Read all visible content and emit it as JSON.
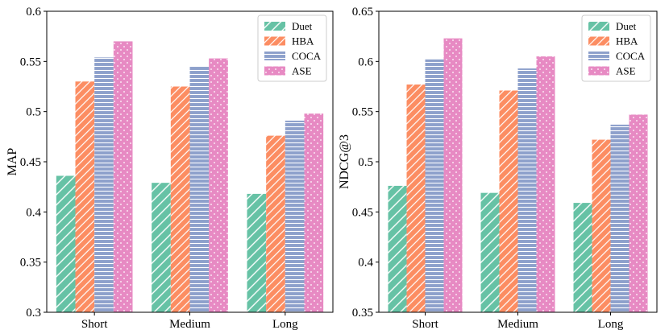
{
  "chart_data": [
    {
      "type": "bar",
      "title": "",
      "xlabel": "",
      "ylabel": "MAP",
      "ylim": [
        0.3,
        0.6
      ],
      "yticks": [
        "0.3",
        "0.35",
        "0.4",
        "0.45",
        "0.5",
        "0.55",
        "0.6"
      ],
      "categories": [
        "Short",
        "Medium",
        "Long"
      ],
      "legend_position": "top-right",
      "series": [
        {
          "name": "Duet",
          "values": [
            0.436,
            0.429,
            0.418
          ]
        },
        {
          "name": "HBA",
          "values": [
            0.53,
            0.525,
            0.476
          ]
        },
        {
          "name": "COCA",
          "values": [
            0.554,
            0.545,
            0.491
          ]
        },
        {
          "name": "ASE",
          "values": [
            0.57,
            0.553,
            0.498
          ]
        }
      ]
    },
    {
      "type": "bar",
      "title": "",
      "xlabel": "",
      "ylabel": "NDCG@3",
      "ylim": [
        0.35,
        0.65
      ],
      "yticks": [
        "0.35",
        "0.4",
        "0.45",
        "0.5",
        "0.55",
        "0.6",
        "0.65"
      ],
      "categories": [
        "Short",
        "Medium",
        "Long"
      ],
      "legend_position": "top-right",
      "series": [
        {
          "name": "Duet",
          "values": [
            0.476,
            0.469,
            0.459
          ]
        },
        {
          "name": "HBA",
          "values": [
            0.577,
            0.571,
            0.522
          ]
        },
        {
          "name": "COCA",
          "values": [
            0.602,
            0.593,
            0.537
          ]
        },
        {
          "name": "ASE",
          "values": [
            0.623,
            0.605,
            0.547
          ]
        }
      ]
    }
  ],
  "colors": {
    "Duet": "#66c2a5",
    "HBA": "#fc8d62",
    "COCA": "#8da0cb",
    "ASE": "#e78ac3"
  }
}
